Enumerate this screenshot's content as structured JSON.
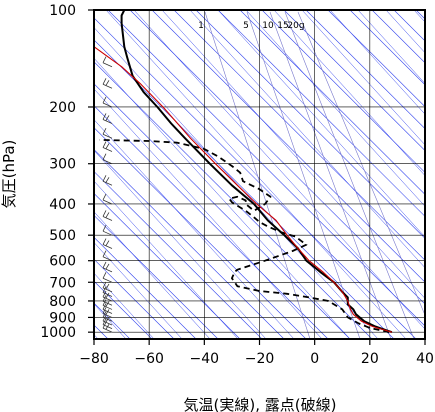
{
  "chart_data": {
    "type": "line",
    "xlabel": "気温(実線), 露点(破線)",
    "ylabel": "気圧(hPa)",
    "xlim": [
      -80,
      40
    ],
    "ylim": [
      1050,
      100
    ],
    "y_scale": "log",
    "x_ticks": [
      "−80",
      "−60",
      "−40",
      "−20",
      "0",
      "20",
      "40"
    ],
    "x_tick_values": [
      -80,
      -60,
      -40,
      -20,
      0,
      20,
      40
    ],
    "y_ticks": [
      "100",
      "200",
      "300",
      "400",
      "500",
      "600",
      "700",
      "800",
      "900",
      "1000"
    ],
    "y_tick_values": [
      100,
      200,
      300,
      400,
      500,
      600,
      700,
      800,
      900,
      1000
    ],
    "mixing_ratio_labels": [
      "1",
      "5",
      "10",
      "15",
      "20g"
    ],
    "colors": {
      "temperature": "#000000",
      "dewpoint": "#000000",
      "parcel": "#cc0000",
      "isotherms_dry_adiabats": "#3344ee",
      "mixing_ratio": "#7777cc",
      "grid": "#000000",
      "wind_barbs": "#333333"
    },
    "series": [
      {
        "style": "solid",
        "points": [
          [
            28,
            1000
          ],
          [
            22,
            960
          ],
          [
            18,
            925
          ],
          [
            15,
            880
          ],
          [
            14,
            850
          ],
          [
            12,
            820
          ],
          [
            12,
            800
          ],
          [
            12,
            780
          ],
          [
            10,
            750
          ],
          [
            7,
            700
          ],
          [
            2,
            650
          ],
          [
            -3,
            600
          ],
          [
            -6,
            550
          ],
          [
            -11,
            500
          ],
          [
            -17,
            450
          ],
          [
            -22,
            400
          ],
          [
            -30,
            350
          ],
          [
            -38,
            300
          ],
          [
            -47,
            250
          ],
          [
            -52,
            225
          ],
          [
            -57,
            200
          ],
          [
            -62,
            180
          ],
          [
            -66,
            160
          ],
          [
            -67,
            150
          ],
          [
            -68,
            140
          ],
          [
            -69,
            130
          ],
          [
            -69.5,
            120
          ],
          [
            -70,
            110
          ],
          [
            -70,
            104
          ],
          [
            -69,
            100
          ]
        ]
      },
      {
        "style": "dashed",
        "points": [
          [
            27,
            1000
          ],
          [
            20,
            970
          ],
          [
            16,
            940
          ],
          [
            12,
            900
          ],
          [
            10,
            850
          ],
          [
            5,
            800
          ],
          [
            -2,
            780
          ],
          [
            -10,
            760
          ],
          [
            -20,
            745
          ],
          [
            -28,
            720
          ],
          [
            -29,
            700
          ],
          [
            -30,
            680
          ],
          [
            -29,
            650
          ],
          [
            -28,
            640
          ],
          [
            -18,
            600
          ],
          [
            -8,
            560
          ],
          [
            -3,
            535
          ],
          [
            -5,
            520
          ],
          [
            -7,
            505
          ],
          [
            -12,
            490
          ],
          [
            -17,
            470
          ],
          [
            -20,
            455
          ],
          [
            -22,
            440
          ],
          [
            -25,
            420
          ],
          [
            -28,
            405
          ],
          [
            -30,
            395
          ],
          [
            -31,
            385
          ],
          [
            -28,
            380
          ],
          [
            -25,
            390
          ],
          [
            -25,
            400
          ],
          [
            -22,
            420
          ],
          [
            -18,
            400
          ],
          [
            -16,
            380
          ],
          [
            -20,
            360
          ],
          [
            -26,
            340
          ],
          [
            -27,
            320
          ],
          [
            -30,
            305
          ],
          [
            -35,
            285
          ],
          [
            -40,
            270
          ],
          [
            -50,
            258
          ],
          [
            -60,
            255
          ],
          [
            -70,
            254
          ],
          [
            -78,
            253
          ]
        ]
      },
      {
        "style": "parcel",
        "points": [
          [
            28,
            1000
          ],
          [
            21,
            960
          ],
          [
            17,
            925
          ],
          [
            14,
            880
          ],
          [
            13,
            850
          ],
          [
            12,
            800
          ],
          [
            10,
            750
          ],
          [
            7,
            700
          ],
          [
            3,
            650
          ],
          [
            -2,
            600
          ],
          [
            -6,
            550
          ],
          [
            -10,
            500
          ],
          [
            -14,
            450
          ],
          [
            -21,
            400
          ],
          [
            -28,
            350
          ],
          [
            -36,
            300
          ],
          [
            -45,
            250
          ],
          [
            -55,
            200
          ],
          [
            -63,
            170
          ],
          [
            -70,
            150
          ],
          [
            -80,
            130
          ]
        ]
      }
    ]
  }
}
